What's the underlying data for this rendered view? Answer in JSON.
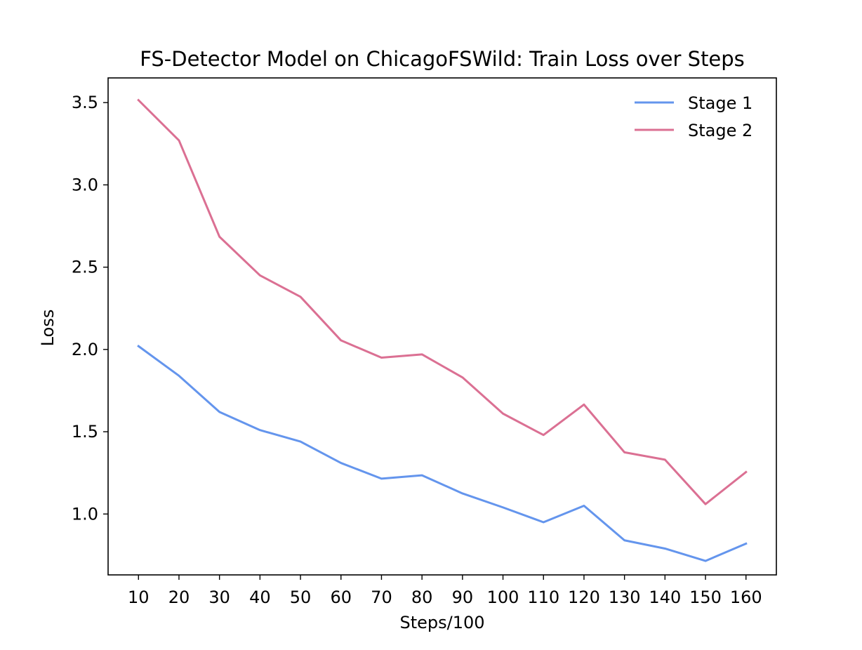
{
  "chart_data": {
    "type": "line",
    "title": "FS-Detector Model on ChicagoFSWild: Train Loss over Steps",
    "xlabel": "Steps/100",
    "ylabel": "Loss",
    "x": [
      10,
      20,
      30,
      40,
      50,
      60,
      70,
      80,
      90,
      100,
      110,
      120,
      130,
      140,
      150,
      160
    ],
    "xticks": [
      "10",
      "20",
      "30",
      "40",
      "50",
      "60",
      "70",
      "80",
      "90",
      "100",
      "110",
      "120",
      "130",
      "140",
      "150",
      "160"
    ],
    "yticks": [
      "1.0",
      "1.5",
      "2.0",
      "2.5",
      "3.0",
      "3.5"
    ],
    "xlim": [
      2.5,
      167.5
    ],
    "ylim": [
      0.63,
      3.65
    ],
    "grid": false,
    "legend_position": "top-right",
    "series": [
      {
        "name": "Stage 1",
        "color": "#6495ED",
        "values": [
          2.02,
          1.84,
          1.62,
          1.51,
          1.44,
          1.31,
          1.215,
          1.235,
          1.125,
          1.04,
          0.95,
          1.05,
          0.84,
          0.79,
          0.715,
          0.82
        ]
      },
      {
        "name": "Stage 2",
        "color": "#DB7093",
        "values": [
          3.515,
          3.27,
          2.685,
          2.45,
          2.32,
          2.055,
          1.95,
          1.97,
          1.83,
          1.61,
          1.48,
          1.665,
          1.375,
          1.33,
          1.06,
          1.255
        ]
      }
    ]
  }
}
